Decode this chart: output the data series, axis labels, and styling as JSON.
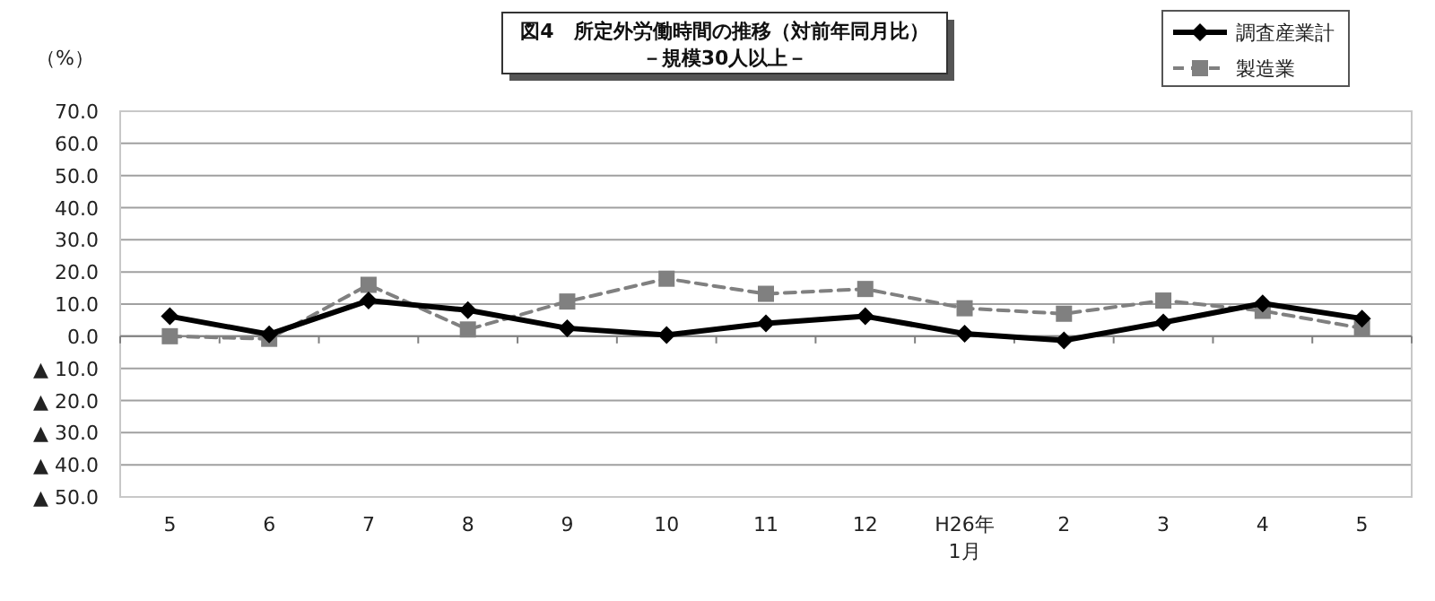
{
  "chart_data": {
    "type": "line",
    "title": "図4　所定外労働時間の推移（対前年同月比）",
    "subtitle": "－規模30人以上－",
    "ylabel": "（%）",
    "categories": [
      "5",
      "6",
      "7",
      "8",
      "9",
      "10",
      "11",
      "12",
      "H26年\n1月",
      "2",
      "3",
      "4",
      "5"
    ],
    "series": [
      {
        "name": "調査産業計",
        "color": "#000000",
        "marker": "diamond",
        "line_style": "solid",
        "values": [
          6.2,
          0.6,
          11.1,
          8.1,
          2.5,
          0.4,
          4.0,
          6.2,
          0.8,
          -1.3,
          4.3,
          10.2,
          5.5
        ]
      },
      {
        "name": "製造業",
        "color": "#808080",
        "marker": "square",
        "line_style": "dashed",
        "values": [
          0.0,
          -0.8,
          16.0,
          2.1,
          10.8,
          17.9,
          13.2,
          14.7,
          8.7,
          7.0,
          11.1,
          7.9,
          2.5
        ]
      }
    ],
    "ylim": [
      -50,
      70
    ],
    "yticks": [
      {
        "value": -50,
        "label": "▲ 50.0"
      },
      {
        "value": -40,
        "label": "▲ 40.0"
      },
      {
        "value": -30,
        "label": "▲ 30.0"
      },
      {
        "value": -20,
        "label": "▲ 20.0"
      },
      {
        "value": -10,
        "label": "▲ 10.0"
      },
      {
        "value": 0,
        "label": "0.0"
      },
      {
        "value": 10,
        "label": "10.0"
      },
      {
        "value": 20,
        "label": "20.0"
      },
      {
        "value": 30,
        "label": "30.0"
      },
      {
        "value": 40,
        "label": "40.0"
      },
      {
        "value": 50,
        "label": "50.0"
      },
      {
        "value": 60,
        "label": "60.0"
      },
      {
        "value": 70,
        "label": "70.0"
      }
    ],
    "grid": "y",
    "legend": "top right"
  }
}
